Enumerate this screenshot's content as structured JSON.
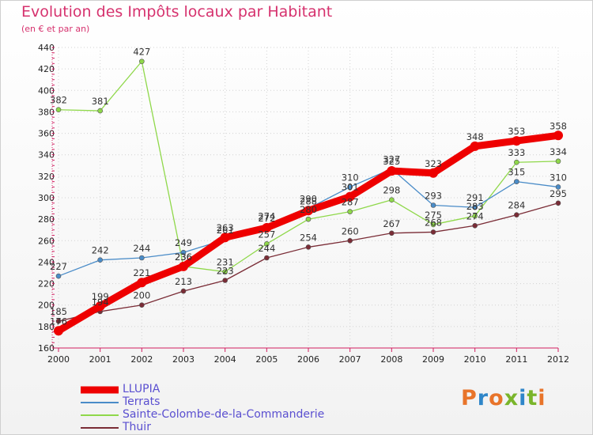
{
  "title": "Evolution des Impôts locaux par Habitant",
  "subtitle": "(en € et par an)",
  "logo": {
    "text": "Proxiti",
    "letters": [
      "P",
      "r",
      "o",
      "x",
      "i",
      "t",
      "i"
    ],
    "colors": [
      "#e8742a",
      "#2f86c9",
      "#e8742a",
      "#7ab52b",
      "#2f86c9",
      "#7ab52b",
      "#e8742a"
    ]
  },
  "chart_data": {
    "type": "line",
    "title": "Evolution des Impôts locaux par Habitant",
    "ylabel": "(en € et par an)",
    "xlabel": "",
    "x": [
      "2000",
      "2001",
      "2002",
      "2003",
      "2004",
      "2005",
      "2006",
      "2007",
      "2008",
      "2009",
      "2010",
      "2011",
      "2012"
    ],
    "ylim": [
      160,
      440
    ],
    "yticks": [
      160,
      180,
      200,
      220,
      240,
      260,
      280,
      300,
      320,
      340,
      360,
      380,
      400,
      420,
      440
    ],
    "grid": true,
    "series": [
      {
        "name": "LLUPIA",
        "color": "#ee0000",
        "values": [
          176,
          199,
          221,
          236,
          263,
          272,
          288,
          301,
          325,
          323,
          348,
          353,
          358
        ]
      },
      {
        "name": "Terrats",
        "color": "#4a8cc8",
        "values": [
          227,
          242,
          244,
          249,
          261,
          274,
          290,
          310,
          327,
          293,
          291,
          315,
          310
        ]
      },
      {
        "name": "Sainte-Colombe-de-la-Commanderie",
        "color": "#8fd84a",
        "values": [
          382,
          381,
          427,
          236,
          231,
          257,
          280,
          287,
          298,
          275,
          283,
          333,
          334
        ]
      },
      {
        "name": "Thuir",
        "color": "#7a2c36",
        "values": [
          185,
          194,
          200,
          213,
          223,
          244,
          254,
          260,
          267,
          268,
          274,
          284,
          295
        ]
      }
    ]
  }
}
